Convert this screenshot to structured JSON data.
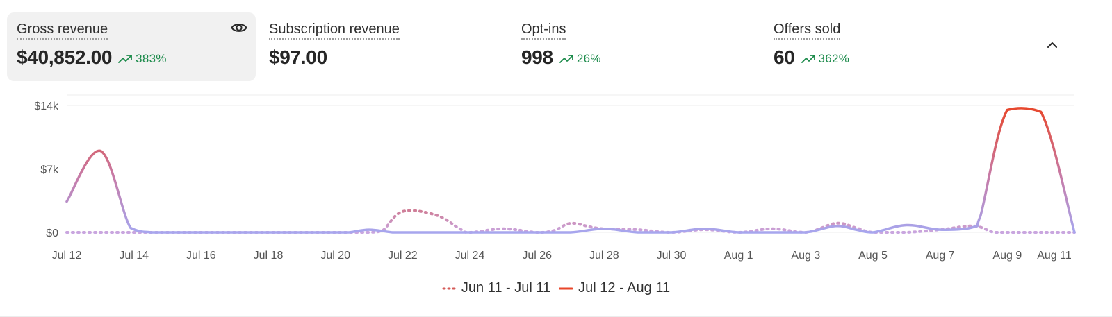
{
  "metrics": [
    {
      "label": "Gross revenue",
      "value": "$40,852.00",
      "trend": "383%",
      "trend_dir": "up",
      "active": true
    },
    {
      "label": "Subscription revenue",
      "value": "$97.00",
      "trend": "",
      "trend_dir": "",
      "active": false
    },
    {
      "label": "Opt-ins",
      "value": "998",
      "trend": "26%",
      "trend_dir": "up",
      "active": false
    },
    {
      "label": "Offers sold",
      "value": "60",
      "trend": "362%",
      "trend_dir": "up",
      "active": false
    }
  ],
  "icons": {
    "visibility": "eye-icon",
    "collapse": "chevron-up-icon",
    "trend": "trending-up-icon"
  },
  "colors": {
    "current_start": "#e8462a",
    "current_end": "#a7a6ee",
    "previous_start": "#d55a57",
    "previous_end": "#c9a6e0",
    "trend_green": "#1b8a4a"
  },
  "chart_data": {
    "type": "line",
    "ylim": [
      0,
      14000
    ],
    "yticks": [
      {
        "value": 0,
        "label": "$0"
      },
      {
        "value": 7000,
        "label": "$7k"
      },
      {
        "value": 14000,
        "label": "$14k"
      }
    ],
    "xlim": [
      0,
      30
    ],
    "xticks": [
      {
        "i": 0,
        "label": "Jul 12"
      },
      {
        "i": 2,
        "label": "Jul 14"
      },
      {
        "i": 4,
        "label": "Jul 16"
      },
      {
        "i": 6,
        "label": "Jul 18"
      },
      {
        "i": 8,
        "label": "Jul 20"
      },
      {
        "i": 10,
        "label": "Jul 22"
      },
      {
        "i": 12,
        "label": "Jul 24"
      },
      {
        "i": 14,
        "label": "Jul 26"
      },
      {
        "i": 16,
        "label": "Jul 28"
      },
      {
        "i": 18,
        "label": "Jul 30"
      },
      {
        "i": 20,
        "label": "Aug 1"
      },
      {
        "i": 22,
        "label": "Aug 3"
      },
      {
        "i": 24,
        "label": "Aug 5"
      },
      {
        "i": 26,
        "label": "Aug 7"
      },
      {
        "i": 28,
        "label": "Aug 9"
      },
      {
        "i": 29.4,
        "label": "Aug 11"
      }
    ],
    "grid": true,
    "legend_position": "bottom-center",
    "series": [
      {
        "name": "Jun 11 - Jul 11",
        "style": "dotted",
        "points": [
          [
            0,
            0
          ],
          [
            1,
            0
          ],
          [
            2,
            0
          ],
          [
            3,
            0
          ],
          [
            4,
            0
          ],
          [
            5,
            0
          ],
          [
            6,
            0
          ],
          [
            7,
            0
          ],
          [
            8,
            0
          ],
          [
            9,
            0
          ],
          [
            9.4,
            200
          ],
          [
            10,
            2300
          ],
          [
            11,
            1900
          ],
          [
            11.7,
            400
          ],
          [
            12,
            0
          ],
          [
            13,
            400
          ],
          [
            14,
            0
          ],
          [
            14.5,
            200
          ],
          [
            15,
            1000
          ],
          [
            15.6,
            600
          ],
          [
            16,
            400
          ],
          [
            17,
            300
          ],
          [
            18,
            0
          ],
          [
            19,
            300
          ],
          [
            20,
            0
          ],
          [
            21,
            400
          ],
          [
            22,
            0
          ],
          [
            22.9,
            1000
          ],
          [
            23.5,
            500
          ],
          [
            24,
            0
          ],
          [
            25,
            0
          ],
          [
            26,
            300
          ],
          [
            27,
            700
          ],
          [
            27.6,
            0
          ],
          [
            28,
            0
          ],
          [
            29,
            0
          ],
          [
            30,
            0
          ]
        ]
      },
      {
        "name": "Jul 12 - Aug 11",
        "style": "solid",
        "points": [
          [
            0,
            3400
          ],
          [
            1,
            9000
          ],
          [
            1.9,
            500
          ],
          [
            2.5,
            0
          ],
          [
            3,
            0
          ],
          [
            4,
            0
          ],
          [
            5,
            0
          ],
          [
            6,
            0
          ],
          [
            7,
            0
          ],
          [
            8,
            0
          ],
          [
            8.4,
            0
          ],
          [
            9,
            300
          ],
          [
            9.7,
            0
          ],
          [
            10,
            0
          ],
          [
            11,
            0
          ],
          [
            12,
            0
          ],
          [
            13,
            0
          ],
          [
            14,
            0
          ],
          [
            15,
            0
          ],
          [
            16,
            400
          ],
          [
            17,
            0
          ],
          [
            18,
            0
          ],
          [
            19,
            400
          ],
          [
            20,
            0
          ],
          [
            21,
            0
          ],
          [
            22,
            0
          ],
          [
            22.9,
            700
          ],
          [
            23.5,
            300
          ],
          [
            24,
            0
          ],
          [
            25,
            800
          ],
          [
            26,
            300
          ],
          [
            27,
            600
          ],
          [
            27.2,
            1800
          ],
          [
            28,
            13500
          ],
          [
            29,
            13300
          ],
          [
            30,
            0
          ]
        ]
      }
    ]
  }
}
